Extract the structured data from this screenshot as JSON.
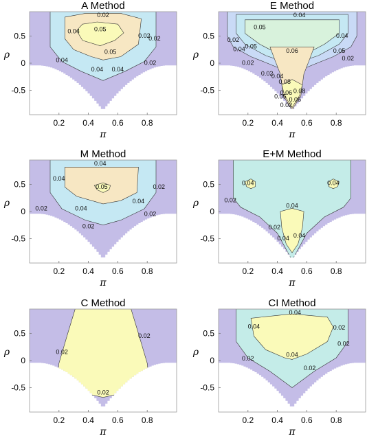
{
  "chart_data": [
    {
      "type": "contour",
      "title": "A Method",
      "xlabel": "π",
      "ylabel": "ρ",
      "xticks": [
        "0.2",
        "0.4",
        "0.6",
        "0.8"
      ],
      "yticks": [
        "0.5",
        "0",
        "-0.5"
      ],
      "xlim": [
        0,
        1
      ],
      "ylim": [
        -0.95,
        0.95
      ],
      "contour_levels": [
        "0.02",
        "0.04",
        "0.05",
        "0.04",
        "0.05",
        "0.02",
        "0.04",
        "0.04",
        "0.02",
        "0.02"
      ],
      "colors": [
        "#c4bde7",
        "#c5e8f3",
        "#f7e7c3",
        "#fafab9"
      ]
    },
    {
      "type": "contour",
      "title": "E Method",
      "xlabel": "π",
      "ylabel": "ρ",
      "xticks": [
        "0.2",
        "0.4",
        "0.6",
        "0.8"
      ],
      "yticks": [
        "0.5",
        "0",
        "-0.5"
      ],
      "xlim": [
        0,
        1
      ],
      "ylim": [
        -0.95,
        0.95
      ],
      "contour_levels": [
        "0.04",
        "0.05",
        "0.02",
        "0.04",
        "0.05",
        "0.06",
        "0.05",
        "0.04",
        "0.02",
        "0.02",
        "0.02",
        "0.06",
        "0.08",
        "0.08",
        "0.02",
        "0.04",
        "0.05",
        "0.06"
      ],
      "colors": [
        "#c4bde7",
        "#c9daf6",
        "#c5e8f3",
        "#d8f2dc",
        "#f7e7c3",
        "#fafab9"
      ]
    },
    {
      "type": "contour",
      "title": "M Method",
      "xlabel": "π",
      "ylabel": "ρ",
      "xticks": [
        "0.2",
        "0.4",
        "0.6",
        "0.8"
      ],
      "yticks": [
        "0.5",
        "0",
        "-0.5"
      ],
      "xlim": [
        0,
        1
      ],
      "ylim": [
        -0.95,
        0.95
      ],
      "contour_levels": [
        "0.04",
        "0.04",
        "0.05",
        "0.02",
        "0.04",
        "0.04",
        "0.02",
        "0.02",
        "0.02"
      ],
      "colors": [
        "#c4bde7",
        "#c5e8f3",
        "#f7e7c3",
        "#fafab9"
      ]
    },
    {
      "type": "contour",
      "title": "E+M Method",
      "xlabel": "π",
      "ylabel": "ρ",
      "xticks": [
        "0.2",
        "0.4",
        "0.6",
        "0.8"
      ],
      "yticks": [
        "0.5",
        "0",
        "-0.5"
      ],
      "xlim": [
        0,
        1
      ],
      "ylim": [
        -0.95,
        0.95
      ],
      "contour_levels": [
        "0.04",
        "0.04",
        "0.02",
        "0.04",
        "0.02",
        "0.04",
        "0.04"
      ],
      "colors": [
        "#c4bde7",
        "#c4ece8",
        "#fafab9"
      ]
    },
    {
      "type": "contour",
      "title": "C Method",
      "xlabel": "π",
      "ylabel": "ρ",
      "xticks": [
        "0.2",
        "0.4",
        "0.6",
        "0.8"
      ],
      "yticks": [
        "0.5",
        "0",
        "-0.5"
      ],
      "xlim": [
        0,
        1
      ],
      "ylim": [
        -0.95,
        0.95
      ],
      "contour_levels": [
        "0.02",
        "0.02",
        "0.02"
      ],
      "colors": [
        "#c4bde7",
        "#fafab9"
      ]
    },
    {
      "type": "contour",
      "title": "CI Method",
      "xlabel": "π",
      "ylabel": "ρ",
      "xticks": [
        "0.2",
        "0.4",
        "0.6",
        "0.8"
      ],
      "yticks": [
        "0.5",
        "0",
        "-0.5"
      ],
      "xlim": [
        0,
        1
      ],
      "ylim": [
        -0.95,
        0.95
      ],
      "contour_levels": [
        "0.04",
        "0.04",
        "0.02",
        "0.04",
        "0.02",
        "0.02",
        "0.02"
      ],
      "colors": [
        "#c4bde7",
        "#c4ece8",
        "#fafab9"
      ]
    }
  ]
}
